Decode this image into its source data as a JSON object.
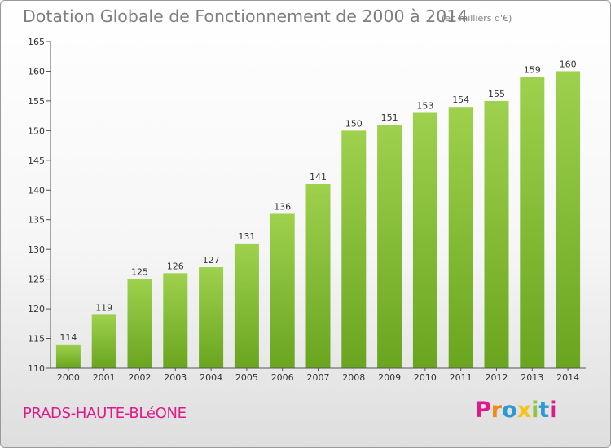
{
  "chart_data": {
    "type": "bar",
    "title": "Dotation Globale de Fonctionnement de 2000 à 2014",
    "subtitle": "(en milliers d'€)",
    "categories": [
      "2000",
      "2001",
      "2002",
      "2003",
      "2004",
      "2005",
      "2006",
      "2007",
      "2008",
      "2009",
      "2010",
      "2011",
      "2012",
      "2013",
      "2014"
    ],
    "values": [
      114,
      119,
      125,
      126,
      127,
      131,
      136,
      141,
      150,
      151,
      153,
      154,
      155,
      159,
      160
    ],
    "ylim": [
      110,
      165
    ],
    "yticks": [
      110,
      115,
      120,
      125,
      130,
      135,
      140,
      145,
      150,
      155,
      160,
      165
    ],
    "xlabel": "",
    "ylabel": "",
    "grid": false,
    "bar_color_top": "#9ed14d",
    "bar_color_bottom": "#6aa51f"
  },
  "commune": "PRADS-HAUTE-BLéONE",
  "brand": {
    "letters": [
      "P",
      "r",
      "o",
      "x",
      "i",
      "t",
      "i"
    ],
    "colors": [
      "#e0198a",
      "#f08a1c",
      "#2b9ad6",
      "#f6c419",
      "#8dc63f",
      "#2b9ad6",
      "#e0198a"
    ]
  }
}
